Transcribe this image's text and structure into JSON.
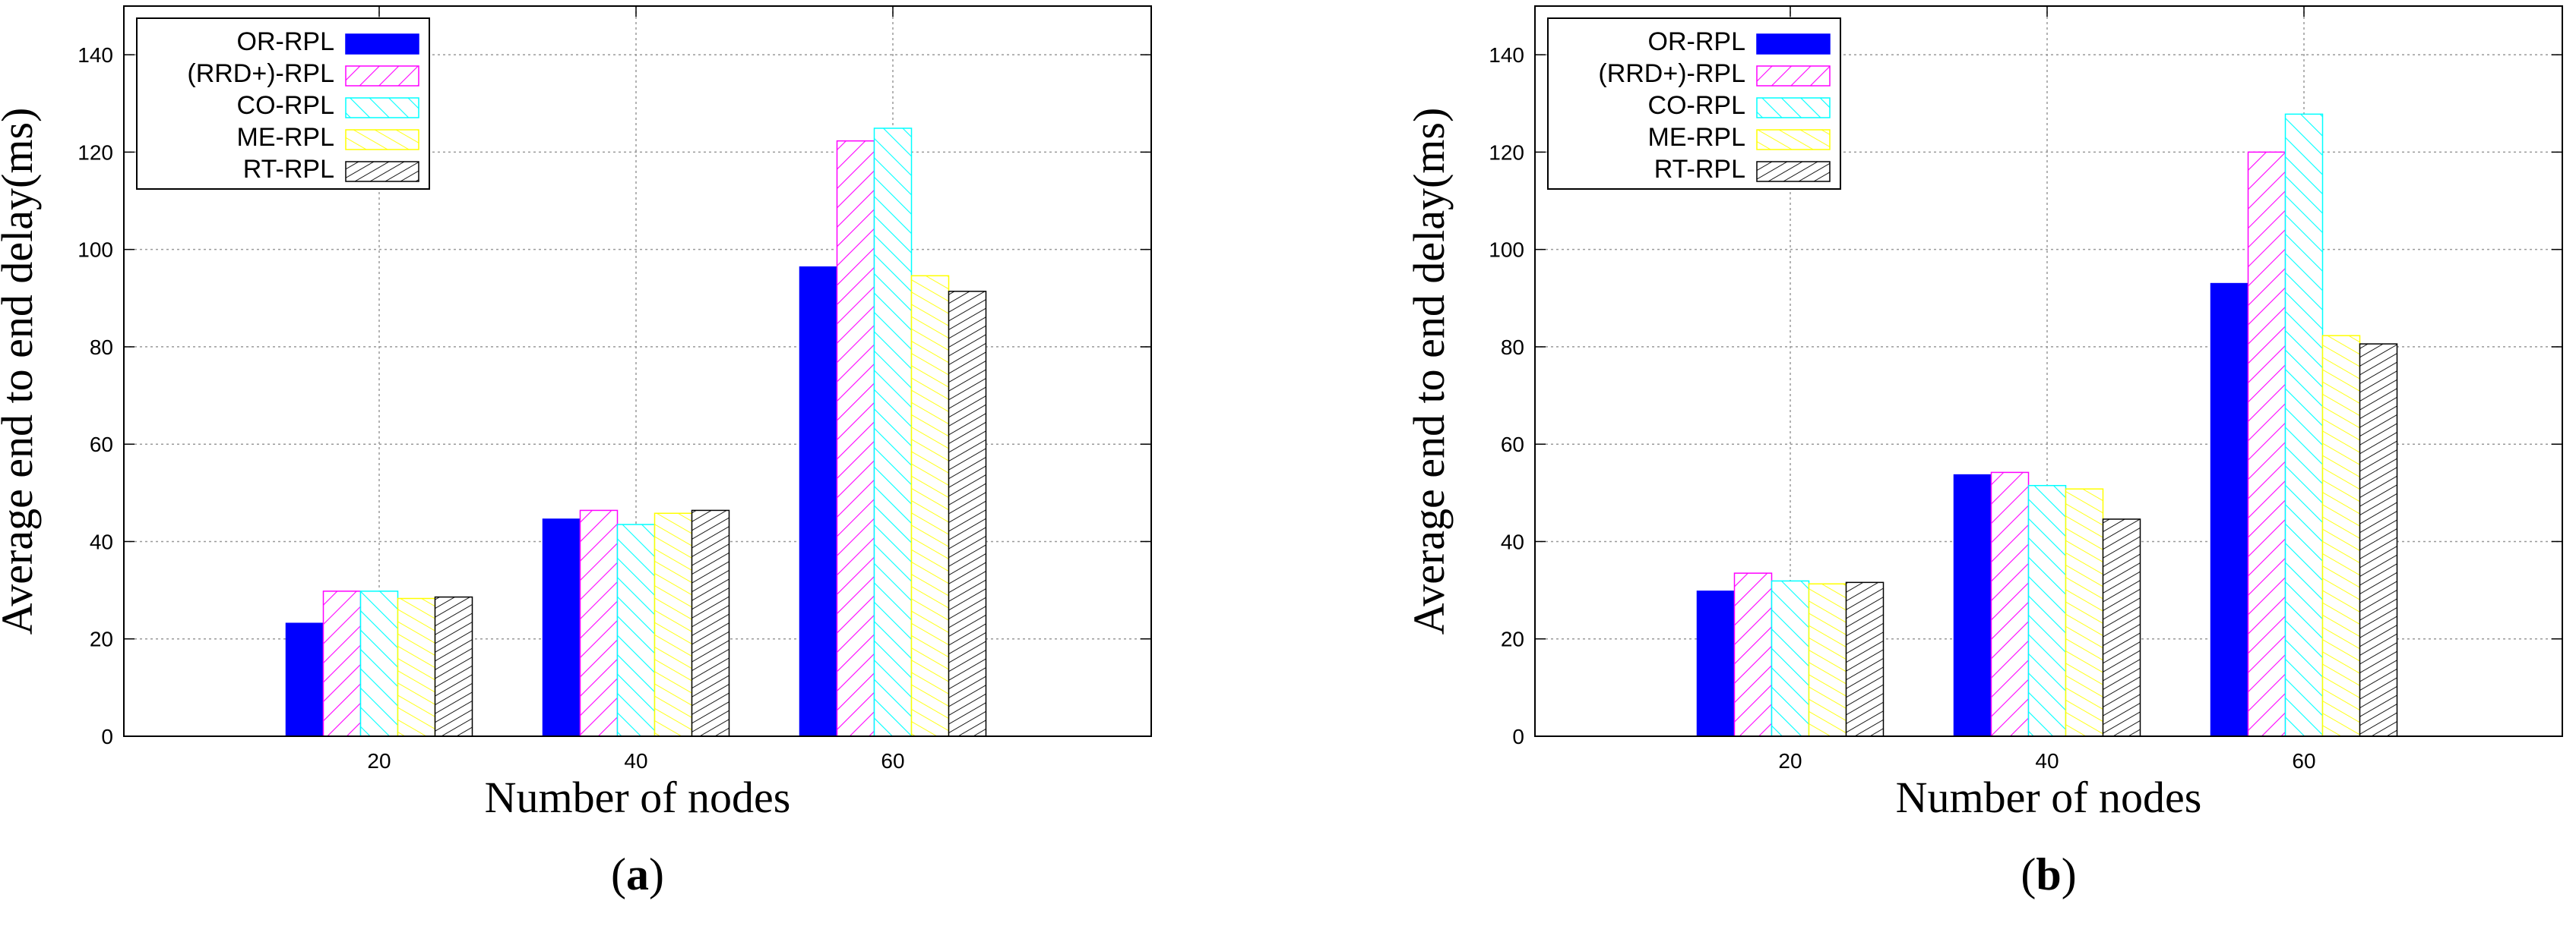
{
  "chart_data": [
    {
      "type": "bar",
      "panel_label": "a",
      "xlabel": "Number of nodes",
      "ylabel": "Average end to end delay(ms)",
      "categories": [
        "20",
        "40",
        "60"
      ],
      "ylim": [
        0,
        150
      ],
      "yticks": [
        0,
        20,
        40,
        60,
        80,
        100,
        120,
        140
      ],
      "grid": true,
      "legend_position": "top-left",
      "series": [
        {
          "name": "OR-RPL",
          "color": "#0000ff",
          "pattern": "solid",
          "values": [
            23.2,
            44.6,
            96.4
          ]
        },
        {
          "name": "(RRD+)-RPL",
          "color": "#ff00ff",
          "pattern": "hatch-right",
          "values": [
            29.8,
            46.4,
            122.3
          ]
        },
        {
          "name": "CO-RPL",
          "color": "#00ffff",
          "pattern": "hatch-left",
          "values": [
            29.8,
            43.5,
            124.9
          ]
        },
        {
          "name": "ME-RPL",
          "color": "#ffff00",
          "pattern": "hatch-right-light",
          "values": [
            28.3,
            45.8,
            94.6
          ]
        },
        {
          "name": "RT-RPL",
          "color": "#000000",
          "pattern": "hatch-dense",
          "values": [
            28.6,
            46.4,
            91.4
          ]
        }
      ]
    },
    {
      "type": "bar",
      "panel_label": "b",
      "xlabel": "Number of nodes",
      "ylabel": "Average end to end delay(ms)",
      "categories": [
        "20",
        "40",
        "60"
      ],
      "ylim": [
        0,
        150
      ],
      "yticks": [
        0,
        20,
        40,
        60,
        80,
        100,
        120,
        140
      ],
      "grid": true,
      "legend_position": "top-left",
      "series": [
        {
          "name": "OR-RPL",
          "color": "#0000ff",
          "pattern": "solid",
          "values": [
            29.8,
            53.7,
            93.0
          ]
        },
        {
          "name": "(RRD+)-RPL",
          "color": "#ff00ff",
          "pattern": "hatch-right",
          "values": [
            33.5,
            54.2,
            120.0
          ]
        },
        {
          "name": "CO-RPL",
          "color": "#00ffff",
          "pattern": "hatch-left",
          "values": [
            31.9,
            51.5,
            127.8
          ]
        },
        {
          "name": "ME-RPL",
          "color": "#ffff00",
          "pattern": "hatch-right-light",
          "values": [
            31.3,
            50.8,
            82.3
          ]
        },
        {
          "name": "RT-RPL",
          "color": "#000000",
          "pattern": "hatch-dense",
          "values": [
            31.6,
            44.6,
            80.6
          ]
        }
      ]
    }
  ]
}
